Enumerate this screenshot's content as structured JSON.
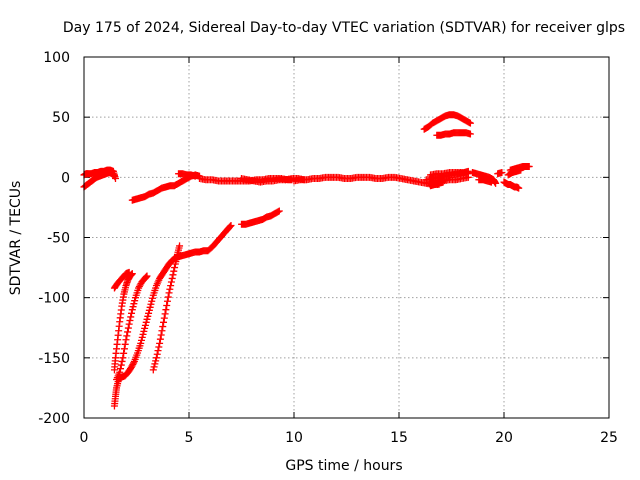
{
  "chart_data": {
    "type": "scatter",
    "title": "Day 175 of 2024, Sidereal Day-to-day VTEC variation (SDTVAR) for receiver glps",
    "xlabel": "GPS time / hours",
    "ylabel": "SDTVAR / TECUs",
    "xlim": [
      0,
      25
    ],
    "ylim": [
      -200,
      100
    ],
    "xticks": [
      0,
      5,
      10,
      15,
      20,
      25
    ],
    "yticks": [
      -200,
      -150,
      -100,
      -50,
      0,
      50,
      100
    ],
    "grid": true,
    "legend": "none",
    "marker": "plus",
    "series_color": "#ff0000",
    "series": [
      {
        "segments": [
          [
            [
              0.0,
              -8
            ],
            [
              0.15,
              -6
            ],
            [
              0.3,
              -4
            ],
            [
              0.45,
              -2
            ],
            [
              0.6,
              0
            ],
            [
              0.75,
              1
            ],
            [
              0.9,
              2
            ],
            [
              1.05,
              3
            ],
            [
              1.2,
              4
            ],
            [
              1.35,
              3
            ],
            [
              1.45,
              1
            ]
          ],
          [
            [
              0.0,
              2
            ],
            [
              0.1,
              3
            ],
            [
              0.2,
              3
            ],
            [
              0.35,
              3
            ],
            [
              0.5,
              4
            ],
            [
              0.65,
              4
            ],
            [
              0.8,
              5
            ],
            [
              0.95,
              5
            ],
            [
              1.1,
              6
            ],
            [
              1.25,
              6
            ],
            [
              1.4,
              5
            ],
            [
              1.5,
              -1
            ]
          ],
          [
            [
              1.45,
              -190
            ],
            [
              1.5,
              -182
            ],
            [
              1.55,
              -175
            ],
            [
              1.65,
              -168
            ],
            [
              1.8,
              -166
            ],
            [
              1.95,
              -165
            ],
            [
              2.1,
              -162
            ],
            [
              2.25,
              -158
            ],
            [
              2.4,
              -153
            ],
            [
              2.55,
              -146
            ],
            [
              2.7,
              -138
            ],
            [
              2.85,
              -128
            ],
            [
              3.0,
              -118
            ],
            [
              3.15,
              -108
            ],
            [
              3.3,
              -98
            ],
            [
              3.45,
              -90
            ],
            [
              3.6,
              -84
            ],
            [
              3.75,
              -80
            ],
            [
              3.9,
              -76
            ],
            [
              4.05,
              -72
            ],
            [
              4.2,
              -69
            ],
            [
              4.35,
              -67
            ],
            [
              4.5,
              -66
            ],
            [
              4.7,
              -65
            ],
            [
              4.9,
              -64
            ],
            [
              5.1,
              -63
            ],
            [
              5.3,
              -62
            ],
            [
              5.5,
              -62
            ],
            [
              5.7,
              -61
            ],
            [
              5.9,
              -61
            ],
            [
              6.1,
              -58
            ],
            [
              6.3,
              -54
            ],
            [
              6.5,
              -50
            ],
            [
              6.7,
              -46
            ],
            [
              6.85,
              -43
            ],
            [
              7.0,
              -40
            ]
          ],
          [
            [
              1.45,
              -160
            ],
            [
              1.5,
              -150
            ],
            [
              1.6,
              -135
            ],
            [
              1.7,
              -120
            ],
            [
              1.8,
              -107
            ],
            [
              1.9,
              -97
            ],
            [
              2.0,
              -90
            ],
            [
              2.1,
              -85
            ],
            [
              2.2,
              -82
            ],
            [
              2.3,
              -80
            ]
          ],
          [
            [
              1.55,
              -168
            ],
            [
              1.7,
              -162
            ],
            [
              1.85,
              -150
            ],
            [
              2.0,
              -135
            ],
            [
              2.15,
              -122
            ],
            [
              2.3,
              -110
            ],
            [
              2.45,
              -100
            ],
            [
              2.6,
              -92
            ],
            [
              2.75,
              -87
            ],
            [
              2.9,
              -84
            ],
            [
              3.0,
              -82
            ]
          ],
          [
            [
              1.45,
              -92
            ],
            [
              1.6,
              -88
            ],
            [
              1.8,
              -84
            ],
            [
              2.0,
              -80
            ],
            [
              2.15,
              -79
            ]
          ],
          [
            [
              3.3,
              -160
            ],
            [
              3.45,
              -150
            ],
            [
              3.6,
              -138
            ],
            [
              3.75,
              -124
            ],
            [
              3.9,
              -110
            ],
            [
              4.05,
              -96
            ],
            [
              4.2,
              -84
            ],
            [
              4.35,
              -72
            ],
            [
              4.45,
              -64
            ],
            [
              4.55,
              -57
            ]
          ],
          [
            [
              2.3,
              -19
            ],
            [
              2.5,
              -18
            ],
            [
              2.7,
              -17
            ],
            [
              2.9,
              -16
            ],
            [
              3.1,
              -14
            ],
            [
              3.3,
              -13
            ],
            [
              3.5,
              -11
            ],
            [
              3.7,
              -9
            ],
            [
              3.9,
              -8
            ],
            [
              4.1,
              -7
            ],
            [
              4.3,
              -7
            ],
            [
              4.5,
              -5
            ],
            [
              4.7,
              -3
            ],
            [
              4.9,
              -1
            ],
            [
              5.1,
              1
            ],
            [
              5.3,
              2
            ],
            [
              5.5,
              1
            ]
          ],
          [
            [
              4.5,
              3
            ],
            [
              4.7,
              3
            ],
            [
              4.9,
              2
            ],
            [
              5.1,
              2
            ],
            [
              5.3,
              1
            ]
          ],
          [
            [
              5.5,
              -1
            ],
            [
              5.8,
              -2
            ],
            [
              6.1,
              -2
            ],
            [
              6.4,
              -3
            ],
            [
              6.7,
              -3
            ],
            [
              7.0,
              -3
            ],
            [
              7.3,
              -3
            ],
            [
              7.6,
              -3
            ],
            [
              7.9,
              -3
            ],
            [
              8.2,
              -2
            ],
            [
              8.5,
              -2
            ],
            [
              8.8,
              -1
            ],
            [
              9.1,
              -1
            ],
            [
              9.4,
              -1
            ],
            [
              9.7,
              -2
            ],
            [
              9.9,
              -2
            ]
          ],
          [
            [
              7.5,
              -1
            ],
            [
              7.8,
              -2
            ],
            [
              8.1,
              -3
            ],
            [
              8.4,
              -4
            ],
            [
              8.7,
              -3
            ],
            [
              9.0,
              -3
            ],
            [
              9.3,
              -2
            ],
            [
              9.6,
              -2
            ]
          ],
          [
            [
              7.5,
              -39
            ],
            [
              7.7,
              -39
            ],
            [
              7.9,
              -38
            ],
            [
              8.1,
              -37
            ],
            [
              8.3,
              -36
            ],
            [
              8.5,
              -35
            ],
            [
              8.7,
              -33
            ],
            [
              8.9,
              -32
            ],
            [
              9.1,
              -30
            ],
            [
              9.3,
              -28
            ]
          ],
          [
            [
              10.0,
              -3
            ],
            [
              10.3,
              -2
            ],
            [
              10.6,
              -2
            ],
            [
              10.9,
              -1
            ],
            [
              11.2,
              -1
            ],
            [
              11.5,
              0
            ],
            [
              11.8,
              0
            ],
            [
              12.1,
              0
            ],
            [
              12.4,
              -1
            ],
            [
              12.7,
              -1
            ],
            [
              13.0,
              0
            ],
            [
              13.3,
              0
            ],
            [
              13.6,
              0
            ],
            [
              13.9,
              -1
            ],
            [
              14.2,
              -1
            ],
            [
              14.5,
              0
            ],
            [
              14.8,
              0
            ],
            [
              15.1,
              -1
            ],
            [
              15.4,
              -2
            ],
            [
              15.7,
              -3
            ],
            [
              16.0,
              -4
            ],
            [
              16.3,
              -5
            ],
            [
              16.6,
              -6
            ],
            [
              16.9,
              -6
            ]
          ],
          [
            [
              9.6,
              -2
            ],
            [
              9.9,
              -1
            ],
            [
              10.2,
              -1
            ],
            [
              10.5,
              -2
            ]
          ],
          [
            [
              16.3,
              -2
            ],
            [
              16.6,
              -1
            ],
            [
              16.9,
              0
            ],
            [
              17.2,
              1
            ],
            [
              17.5,
              2
            ],
            [
              17.8,
              3
            ],
            [
              18.1,
              4
            ],
            [
              18.3,
              5
            ]
          ],
          [
            [
              16.5,
              2
            ],
            [
              16.8,
              3
            ],
            [
              17.1,
              3
            ],
            [
              17.4,
              4
            ],
            [
              17.7,
              4
            ],
            [
              18.0,
              4
            ],
            [
              18.3,
              3
            ]
          ],
          [
            [
              16.5,
              -4
            ],
            [
              16.8,
              -3
            ],
            [
              17.1,
              -3
            ],
            [
              17.4,
              -2
            ],
            [
              17.7,
              -2
            ],
            [
              18.0,
              -1
            ],
            [
              18.3,
              0
            ]
          ],
          [
            [
              16.5,
              -7
            ],
            [
              16.7,
              -6
            ],
            [
              16.9,
              -5
            ],
            [
              17.1,
              -4
            ]
          ],
          [
            [
              16.2,
              40
            ],
            [
              16.4,
              42
            ],
            [
              16.6,
              45
            ],
            [
              16.8,
              47
            ],
            [
              17.0,
              49
            ],
            [
              17.2,
              51
            ],
            [
              17.4,
              52
            ],
            [
              17.6,
              52
            ],
            [
              17.8,
              51
            ],
            [
              18.0,
              49
            ],
            [
              18.2,
              47
            ],
            [
              18.4,
              45
            ]
          ],
          [
            [
              16.8,
              35
            ],
            [
              17.0,
              35
            ],
            [
              17.2,
              36
            ],
            [
              17.4,
              36
            ],
            [
              17.6,
              37
            ],
            [
              17.8,
              37
            ],
            [
              18.0,
              37
            ],
            [
              18.2,
              37
            ],
            [
              18.4,
              36
            ]
          ],
          [
            [
              18.5,
              4
            ],
            [
              18.7,
              3
            ],
            [
              18.9,
              2
            ],
            [
              19.1,
              1
            ],
            [
              19.3,
              0
            ],
            [
              19.5,
              -2
            ],
            [
              19.6,
              -5
            ]
          ],
          [
            [
              18.8,
              -2
            ],
            [
              19.0,
              -2
            ],
            [
              19.2,
              -3
            ],
            [
              19.4,
              -4
            ]
          ],
          [
            [
              19.7,
              3
            ],
            [
              19.9,
              4
            ]
          ],
          [
            [
              20.0,
              -4
            ],
            [
              20.1,
              -5
            ],
            [
              20.2,
              -6
            ],
            [
              20.3,
              -6
            ],
            [
              20.4,
              -7
            ],
            [
              20.5,
              -8
            ],
            [
              20.6,
              -8
            ],
            [
              20.7,
              -9
            ]
          ],
          [
            [
              20.3,
              6
            ],
            [
              20.5,
              7
            ],
            [
              20.7,
              8
            ],
            [
              20.9,
              9
            ],
            [
              21.1,
              9
            ],
            [
              21.2,
              9
            ]
          ],
          [
            [
              20.2,
              2
            ],
            [
              20.4,
              4
            ],
            [
              20.6,
              5
            ],
            [
              20.8,
              6
            ]
          ]
        ]
      }
    ]
  }
}
